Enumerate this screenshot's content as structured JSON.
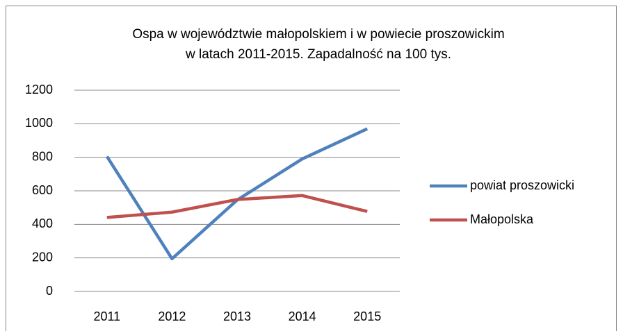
{
  "chart_data": {
    "type": "line",
    "title": [
      "Ospa w województwie małopolskiem i w powiecie proszowickim",
      "w latach 2011-2015. Zapadalność na 100 tys."
    ],
    "categories": [
      "2011",
      "2012",
      "2013",
      "2014",
      "2015"
    ],
    "series": [
      {
        "name": "powiat proszowicki",
        "color": "#4f81bd",
        "values": [
          805,
          195,
          545,
          790,
          970
        ]
      },
      {
        "name": "Małopolska",
        "color": "#c0504d",
        "values": [
          441,
          473,
          548,
          572,
          477
        ]
      }
    ],
    "ylim": [
      0,
      1200
    ],
    "yticks": [
      0,
      200,
      400,
      600,
      800,
      1000,
      1200
    ],
    "grid": true,
    "legend": "right"
  }
}
